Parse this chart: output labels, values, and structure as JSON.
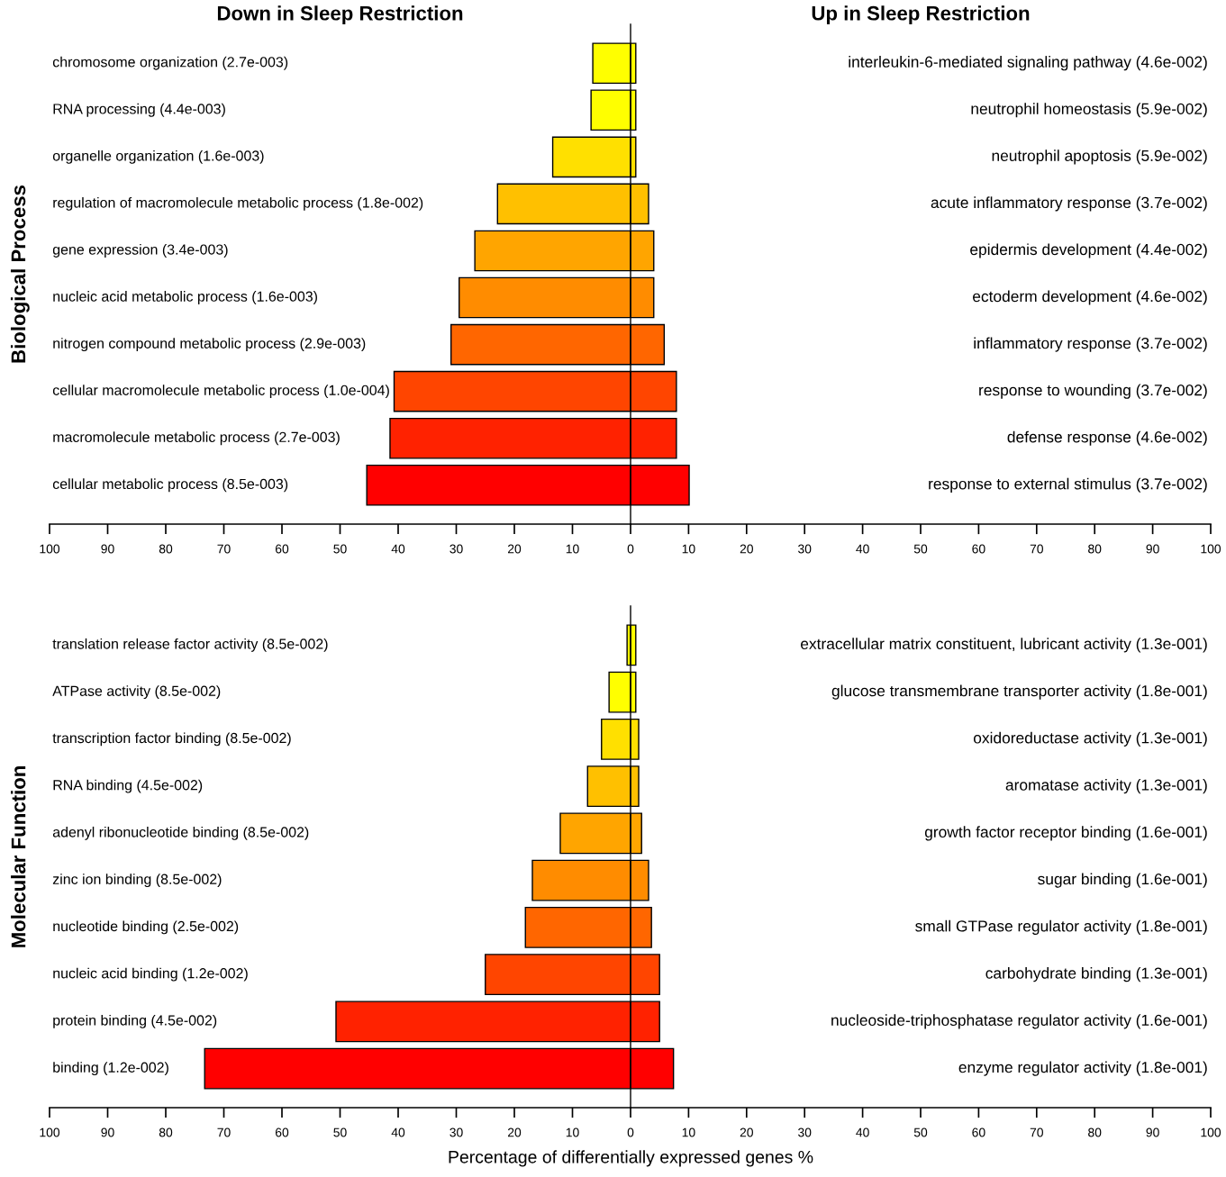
{
  "chart_data": [
    {
      "type": "bar",
      "orientation": "horizontal",
      "title": "Down in Sleep Restriction",
      "ylabel": "Biological Process",
      "categories": [
        "chromosome organization (2.7e-003)",
        "RNA processing (4.4e-003)",
        "organelle organization (1.6e-003)",
        "regulation of macromolecule metabolic process (1.8e-002)",
        "gene expression (3.4e-003)",
        "nucleic acid metabolic process (1.6e-003)",
        "nitrogen compound metabolic process (2.9e-003)",
        "cellular macromolecule metabolic process (1.0e-004)",
        "macromolecule metabolic process (2.7e-003)",
        "cellular metabolic process (8.5e-003)"
      ],
      "values": [
        -6.5,
        -6.8,
        -13.4,
        -22.9,
        -26.8,
        -29.5,
        -30.9,
        -40.7,
        -41.4,
        -45.4
      ],
      "colors": [
        "#ffff00",
        "#ffff00",
        "#ffe000",
        "#ffc000",
        "#ffa500",
        "#ff8c00",
        "#ff6600",
        "#ff4500",
        "#ff2200",
        "#ff0000"
      ],
      "xlim": [
        -100,
        0
      ],
      "xticks": [
        {
          "value": -100,
          "label": "100"
        },
        {
          "value": -90,
          "label": "90"
        },
        {
          "value": -80,
          "label": "80"
        },
        {
          "value": -70,
          "label": "70"
        },
        {
          "value": -60,
          "label": "60"
        },
        {
          "value": -50,
          "label": "50"
        },
        {
          "value": -40,
          "label": "40"
        },
        {
          "value": -30,
          "label": "30"
        },
        {
          "value": -20,
          "label": "20"
        },
        {
          "value": -10,
          "label": "10"
        }
      ]
    },
    {
      "type": "bar",
      "orientation": "horizontal",
      "title": "Up in Sleep Restriction",
      "categories": [
        "interleukin-6-mediated signaling pathway (4.6e-002)",
        "neutrophil homeostasis (5.9e-002)",
        "neutrophil apoptosis (5.9e-002)",
        "acute inflammatory response (3.7e-002)",
        "epidermis development (4.4e-002)",
        "ectoderm development (4.6e-002)",
        "inflammatory response (3.7e-002)",
        "response to wounding (3.7e-002)",
        "defense response (4.6e-002)",
        "response to external stimulus (3.7e-002)"
      ],
      "values": [
        0.9,
        0.9,
        0.9,
        3.1,
        4.0,
        4.0,
        5.8,
        7.9,
        7.9,
        10.1
      ],
      "colors": [
        "#ffff00",
        "#ffff00",
        "#ffe000",
        "#ffc000",
        "#ffa500",
        "#ff8c00",
        "#ff6600",
        "#ff4500",
        "#ff2200",
        "#ff0000"
      ],
      "xlim": [
        0,
        100
      ],
      "xticks": [
        0,
        10,
        20,
        30,
        40,
        50,
        60,
        70,
        80,
        90,
        100
      ]
    },
    {
      "type": "bar",
      "orientation": "horizontal",
      "ylabel": "Molecular Function",
      "xlabel": "Percentage of differentially expressed genes %",
      "categories": [
        "translation release factor activity (8.5e-002)",
        "ATPase activity (8.5e-002)",
        "transcription factor binding (8.5e-002)",
        "RNA binding (4.5e-002)",
        "adenyl ribonucleotide binding (8.5e-002)",
        "zinc ion binding (8.5e-002)",
        "nucleotide binding (2.5e-002)",
        "nucleic acid binding (1.2e-002)",
        "protein binding (4.5e-002)",
        "binding (1.2e-002)"
      ],
      "values": [
        -0.6,
        -3.7,
        -5.0,
        -7.4,
        -12.1,
        -16.9,
        -18.1,
        -25.0,
        -50.7,
        -73.3
      ],
      "colors": [
        "#ffff00",
        "#ffff00",
        "#ffe000",
        "#ffc000",
        "#ffa500",
        "#ff8c00",
        "#ff6600",
        "#ff4500",
        "#ff2200",
        "#ff0000"
      ],
      "xlim": [
        -100,
        0
      ],
      "xticks": [
        {
          "value": -100,
          "label": "100"
        },
        {
          "value": -90,
          "label": "90"
        },
        {
          "value": -80,
          "label": "80"
        },
        {
          "value": -70,
          "label": "70"
        },
        {
          "value": -60,
          "label": "60"
        },
        {
          "value": -50,
          "label": "50"
        },
        {
          "value": -40,
          "label": "40"
        },
        {
          "value": -30,
          "label": "30"
        },
        {
          "value": -20,
          "label": "20"
        },
        {
          "value": -10,
          "label": "10"
        }
      ]
    },
    {
      "type": "bar",
      "orientation": "horizontal",
      "categories": [
        "extracellular matrix constituent, lubricant activity (1.3e-001)",
        "glucose transmembrane transporter activity (1.8e-001)",
        "oxidoreductase activity (1.3e-001)",
        "aromatase activity (1.3e-001)",
        "growth factor receptor binding (1.6e-001)",
        "sugar binding (1.6e-001)",
        "small GTPase regulator activity (1.8e-001)",
        "carbohydrate binding (1.3e-001)",
        "nucleoside-triphosphatase regulator activity (1.6e-001)",
        "enzyme regulator activity (1.8e-001)"
      ],
      "values": [
        0.9,
        0.9,
        1.4,
        1.4,
        1.9,
        3.1,
        3.6,
        5.0,
        5.0,
        7.4
      ],
      "colors": [
        "#ffff00",
        "#ffff00",
        "#ffe000",
        "#ffc000",
        "#ffa500",
        "#ff8c00",
        "#ff6600",
        "#ff4500",
        "#ff2200",
        "#ff0000"
      ],
      "xlim": [
        0,
        100
      ],
      "xticks": [
        0,
        10,
        20,
        30,
        40,
        50,
        60,
        70,
        80,
        90,
        100
      ]
    }
  ]
}
